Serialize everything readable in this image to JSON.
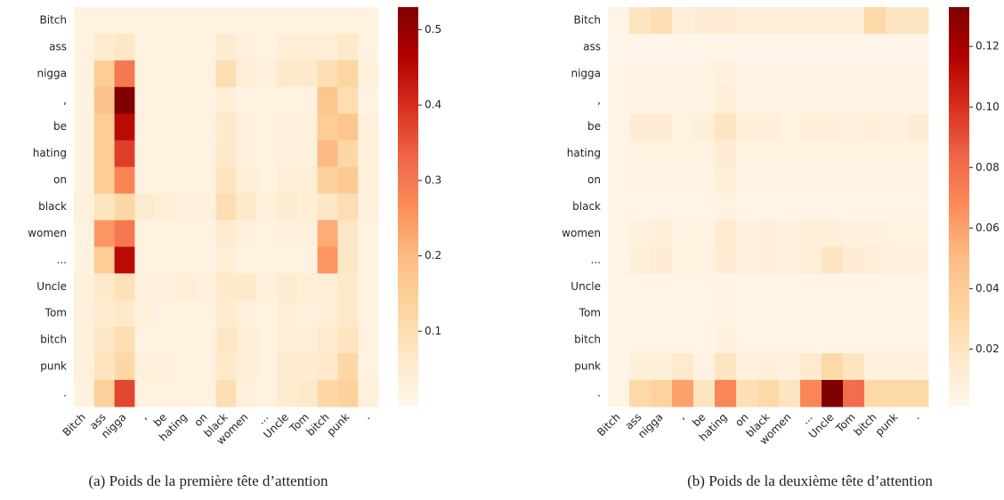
{
  "chart_data": [
    {
      "type": "heatmap",
      "colormap": "OrRd",
      "x": [
        "Bitch",
        "ass",
        "nigga",
        ",",
        "be",
        "hating",
        "on",
        "black",
        "women",
        "...",
        "Uncle",
        "Tom",
        "bitch",
        "punk",
        "."
      ],
      "y": [
        "Bitch",
        "ass",
        "nigga",
        ",",
        "be",
        "hating",
        "on",
        "black",
        "women",
        "...",
        "Uncle",
        "Tom",
        "bitch",
        "punk",
        "."
      ],
      "values": [
        [
          0.02,
          0.02,
          0.02,
          0.02,
          0.02,
          0.02,
          0.02,
          0.02,
          0.02,
          0.02,
          0.02,
          0.02,
          0.02,
          0.02,
          0.02
        ],
        [
          0.02,
          0.05,
          0.07,
          0.02,
          0.02,
          0.02,
          0.02,
          0.05,
          0.03,
          0.02,
          0.04,
          0.04,
          0.04,
          0.06,
          0.02
        ],
        [
          0.02,
          0.15,
          0.3,
          0.02,
          0.02,
          0.02,
          0.02,
          0.1,
          0.04,
          0.03,
          0.06,
          0.06,
          0.1,
          0.13,
          0.03
        ],
        [
          0.02,
          0.18,
          0.53,
          0.02,
          0.02,
          0.02,
          0.02,
          0.04,
          0.02,
          0.02,
          0.02,
          0.02,
          0.17,
          0.1,
          0.02
        ],
        [
          0.02,
          0.15,
          0.45,
          0.02,
          0.02,
          0.02,
          0.02,
          0.06,
          0.03,
          0.02,
          0.03,
          0.03,
          0.15,
          0.17,
          0.03
        ],
        [
          0.02,
          0.15,
          0.38,
          0.02,
          0.02,
          0.02,
          0.02,
          0.06,
          0.03,
          0.02,
          0.03,
          0.03,
          0.2,
          0.12,
          0.03
        ],
        [
          0.02,
          0.15,
          0.28,
          0.02,
          0.02,
          0.02,
          0.02,
          0.08,
          0.04,
          0.02,
          0.04,
          0.04,
          0.14,
          0.16,
          0.03
        ],
        [
          0.03,
          0.08,
          0.12,
          0.05,
          0.04,
          0.03,
          0.03,
          0.1,
          0.06,
          0.03,
          0.05,
          0.04,
          0.07,
          0.1,
          0.03
        ],
        [
          0.02,
          0.25,
          0.3,
          0.02,
          0.02,
          0.02,
          0.02,
          0.05,
          0.03,
          0.02,
          0.03,
          0.03,
          0.22,
          0.07,
          0.02
        ],
        [
          0.02,
          0.15,
          0.45,
          0.02,
          0.02,
          0.02,
          0.02,
          0.04,
          0.02,
          0.02,
          0.02,
          0.02,
          0.25,
          0.07,
          0.02
        ],
        [
          0.03,
          0.06,
          0.09,
          0.03,
          0.03,
          0.04,
          0.03,
          0.06,
          0.06,
          0.03,
          0.05,
          0.04,
          0.04,
          0.06,
          0.02
        ],
        [
          0.03,
          0.05,
          0.06,
          0.03,
          0.02,
          0.02,
          0.02,
          0.05,
          0.03,
          0.02,
          0.04,
          0.03,
          0.04,
          0.06,
          0.02
        ],
        [
          0.03,
          0.07,
          0.1,
          0.02,
          0.02,
          0.02,
          0.02,
          0.07,
          0.04,
          0.02,
          0.04,
          0.04,
          0.05,
          0.08,
          0.02
        ],
        [
          0.03,
          0.08,
          0.12,
          0.03,
          0.03,
          0.02,
          0.02,
          0.06,
          0.04,
          0.02,
          0.05,
          0.05,
          0.06,
          0.12,
          0.02
        ],
        [
          0.02,
          0.14,
          0.37,
          0.02,
          0.02,
          0.02,
          0.02,
          0.1,
          0.03,
          0.02,
          0.05,
          0.06,
          0.12,
          0.14,
          0.03
        ]
      ],
      "zlim": [
        0,
        0.53
      ],
      "zticks": [
        0.1,
        0.2,
        0.3,
        0.4,
        0.5
      ],
      "caption": "(a) Poids de la première tête d’attention"
    },
    {
      "type": "heatmap",
      "colormap": "OrRd",
      "x": [
        "Bitch",
        "ass",
        "nigga",
        ",",
        "be",
        "hating",
        "on",
        "black",
        "women",
        "...",
        "Uncle",
        "Tom",
        "bitch",
        "punk",
        "."
      ],
      "y": [
        "Bitch",
        "ass",
        "nigga",
        ",",
        "be",
        "hating",
        "on",
        "black",
        "women",
        "...",
        "Uncle",
        "Tom",
        "bitch",
        "punk",
        "."
      ],
      "values": [
        [
          0.004,
          0.02,
          0.025,
          0.01,
          0.012,
          0.012,
          0.01,
          0.01,
          0.01,
          0.01,
          0.01,
          0.01,
          0.03,
          0.02,
          0.02
        ],
        [
          0.003,
          0.003,
          0.003,
          0.003,
          0.003,
          0.003,
          0.003,
          0.003,
          0.003,
          0.003,
          0.003,
          0.003,
          0.003,
          0.003,
          0.003
        ],
        [
          0.004,
          0.005,
          0.005,
          0.005,
          0.005,
          0.008,
          0.005,
          0.005,
          0.005,
          0.005,
          0.005,
          0.005,
          0.005,
          0.005,
          0.005
        ],
        [
          0.004,
          0.005,
          0.005,
          0.005,
          0.005,
          0.01,
          0.005,
          0.005,
          0.005,
          0.005,
          0.005,
          0.005,
          0.005,
          0.005,
          0.005
        ],
        [
          0.004,
          0.012,
          0.012,
          0.006,
          0.01,
          0.02,
          0.01,
          0.01,
          0.006,
          0.01,
          0.01,
          0.008,
          0.01,
          0.008,
          0.012
        ],
        [
          0.004,
          0.006,
          0.006,
          0.006,
          0.006,
          0.012,
          0.006,
          0.006,
          0.006,
          0.006,
          0.006,
          0.006,
          0.006,
          0.006,
          0.006
        ],
        [
          0.004,
          0.005,
          0.005,
          0.005,
          0.005,
          0.01,
          0.005,
          0.005,
          0.005,
          0.005,
          0.005,
          0.005,
          0.005,
          0.005,
          0.005
        ],
        [
          0.004,
          0.004,
          0.004,
          0.004,
          0.004,
          0.006,
          0.004,
          0.004,
          0.004,
          0.004,
          0.004,
          0.004,
          0.004,
          0.004,
          0.004
        ],
        [
          0.004,
          0.008,
          0.01,
          0.005,
          0.006,
          0.014,
          0.008,
          0.01,
          0.008,
          0.01,
          0.01,
          0.008,
          0.008,
          0.006,
          0.006
        ],
        [
          0.004,
          0.01,
          0.012,
          0.006,
          0.006,
          0.012,
          0.008,
          0.01,
          0.008,
          0.01,
          0.02,
          0.012,
          0.01,
          0.008,
          0.008
        ],
        [
          0.004,
          0.004,
          0.004,
          0.004,
          0.004,
          0.005,
          0.004,
          0.004,
          0.004,
          0.004,
          0.004,
          0.004,
          0.004,
          0.004,
          0.004
        ],
        [
          0.004,
          0.004,
          0.004,
          0.004,
          0.004,
          0.005,
          0.004,
          0.004,
          0.004,
          0.004,
          0.004,
          0.004,
          0.004,
          0.004,
          0.004
        ],
        [
          0.004,
          0.004,
          0.004,
          0.004,
          0.004,
          0.008,
          0.004,
          0.004,
          0.004,
          0.004,
          0.004,
          0.004,
          0.004,
          0.004,
          0.004
        ],
        [
          0.004,
          0.01,
          0.01,
          0.015,
          0.006,
          0.02,
          0.008,
          0.01,
          0.008,
          0.015,
          0.03,
          0.02,
          0.008,
          0.008,
          0.008
        ],
        [
          0.004,
          0.03,
          0.035,
          0.06,
          0.02,
          0.07,
          0.025,
          0.03,
          0.02,
          0.07,
          0.133,
          0.08,
          0.03,
          0.03,
          0.03
        ]
      ],
      "zlim": [
        0.001,
        0.133
      ],
      "zticks": [
        0.02,
        0.04,
        0.06,
        0.08,
        {
          "value": 0.1,
          "label": "0.10"
        },
        0.12
      ],
      "caption": "(b) Poids de la deuxième tête d’attention"
    }
  ]
}
